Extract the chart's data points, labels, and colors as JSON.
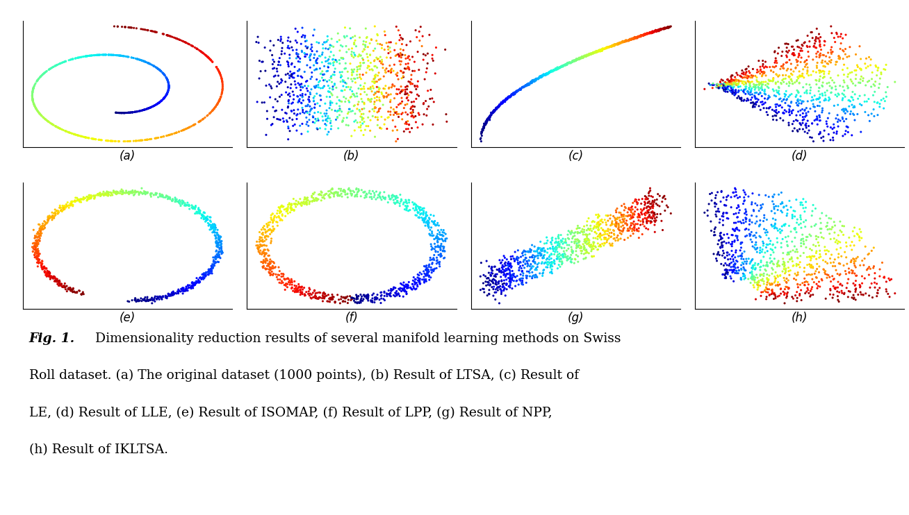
{
  "caption_bold": "Fig. 1.",
  "caption_normal": " Dimensionality reduction results of several manifold learning methods on Swiss Roll dataset. (a) The original dataset (1000 points), (b) Result of LTSA, (c) Result of LE, (d) Result of LLE, (e) Result of ISOMAP, (f) Result of LPP, (g) Result of NPP, (h) Result of IKLTSA.",
  "subplot_labels": [
    "(a)",
    "(b)",
    "(c)",
    "(d)",
    "(e)",
    "(f)",
    "(g)",
    "(h)"
  ],
  "n_points": 1000,
  "background_color": "#ffffff",
  "point_size": 5,
  "colormap": "jet"
}
